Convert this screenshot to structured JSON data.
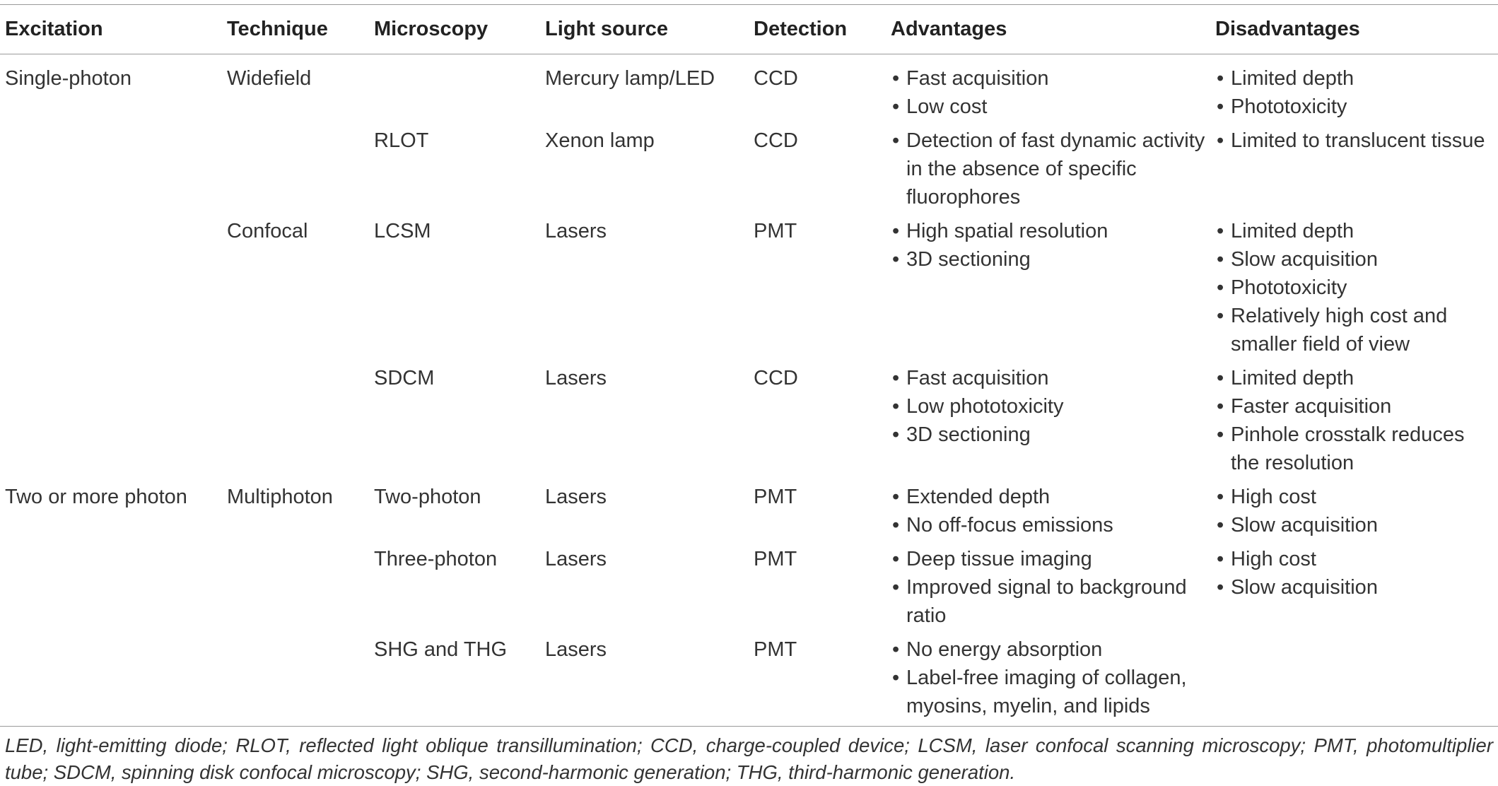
{
  "table": {
    "headers": [
      "Excitation",
      "Technique",
      "Microscopy",
      "Light source",
      "Detection",
      "Advantages",
      "Disadvantages"
    ],
    "rows": [
      {
        "excitation": "Single-photon",
        "technique": "Widefield",
        "microscopy": "",
        "light_source": "Mercury lamp/LED",
        "detection": "CCD",
        "advantages": [
          "Fast acquisition",
          "Low cost"
        ],
        "disadvantages": [
          "Limited depth",
          "Phototoxicity"
        ]
      },
      {
        "excitation": "",
        "technique": "",
        "microscopy": "RLOT",
        "light_source": "Xenon lamp",
        "detection": "CCD",
        "advantages": [
          "Detection of fast dynamic activity in the absence of specific fluorophores"
        ],
        "disadvantages": [
          "Limited to translucent tissue"
        ]
      },
      {
        "excitation": "",
        "technique": "Confocal",
        "microscopy": "LCSM",
        "light_source": "Lasers",
        "detection": "PMT",
        "advantages": [
          "High spatial resolution",
          "3D sectioning"
        ],
        "disadvantages": [
          "Limited depth",
          "Slow acquisition",
          "Phototoxicity",
          "Relatively high cost and smaller field of view"
        ]
      },
      {
        "excitation": "",
        "technique": "",
        "microscopy": "SDCM",
        "light_source": "Lasers",
        "detection": "CCD",
        "advantages": [
          "Fast acquisition",
          "Low phototoxicity",
          "3D sectioning"
        ],
        "disadvantages": [
          "Limited depth",
          "Faster acquisition",
          "Pinhole crosstalk reduces the resolution"
        ]
      },
      {
        "excitation": "Two or more photon",
        "technique": "Multiphoton",
        "microscopy": "Two-photon",
        "light_source": "Lasers",
        "detection": "PMT",
        "advantages": [
          "Extended depth",
          "No off-focus emissions"
        ],
        "disadvantages": [
          "High cost",
          "Slow acquisition"
        ]
      },
      {
        "excitation": "",
        "technique": "",
        "microscopy": "Three-photon",
        "light_source": "Lasers",
        "detection": "PMT",
        "advantages": [
          "Deep tissue imaging",
          "Improved signal to background ratio"
        ],
        "disadvantages": [
          "High cost",
          "Slow acquisition"
        ]
      },
      {
        "excitation": "",
        "technique": "",
        "microscopy": "SHG and THG",
        "light_source": "Lasers",
        "detection": "PMT",
        "advantages": [
          "No energy absorption",
          "Label-free imaging of collagen, myosins, myelin, and lipids"
        ],
        "disadvantages": []
      }
    ]
  },
  "footnote": "LED, light-emitting diode; RLOT, reflected light oblique transillumination; CCD, charge-coupled device; LCSM, laser confocal scanning microscopy; PMT, photomultiplier tube; SDCM, spinning disk confocal microscopy; SHG, second-harmonic generation; THG, third-harmonic generation."
}
